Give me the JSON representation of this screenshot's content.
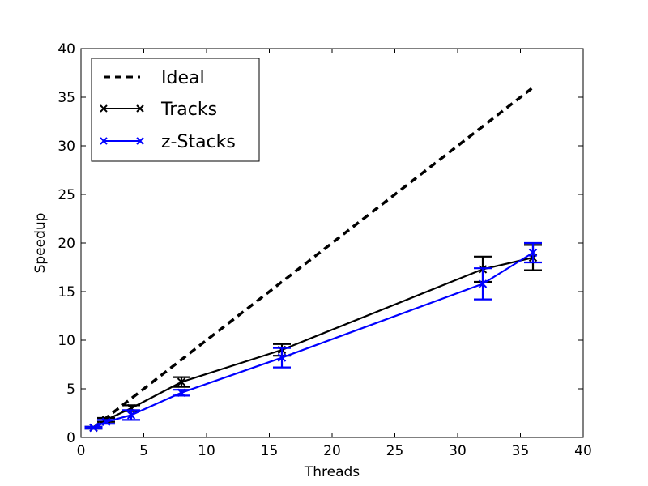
{
  "chart_data": {
    "type": "line",
    "xlabel": "Threads",
    "ylabel": "Speedup",
    "xlim": [
      0,
      40
    ],
    "ylim": [
      0,
      40
    ],
    "xticks": [
      "0",
      "5",
      "10",
      "15",
      "20",
      "25",
      "30",
      "35",
      "40"
    ],
    "yticks": [
      "0",
      "5",
      "10",
      "15",
      "20",
      "25",
      "30",
      "35",
      "40"
    ],
    "grid": false,
    "legend_position": "top-left",
    "series": [
      {
        "name": "Ideal",
        "color": "#000000",
        "style": "dashed",
        "marker": "none",
        "x": [
          1,
          36
        ],
        "y": [
          1,
          36
        ]
      },
      {
        "name": "Tracks",
        "color": "#000000",
        "style": "solid",
        "marker": "x",
        "x": [
          1,
          2,
          4,
          8,
          16,
          32,
          36
        ],
        "y": [
          1.0,
          1.8,
          3.0,
          5.7,
          9.0,
          17.3,
          18.5
        ],
        "err": [
          0.1,
          0.2,
          0.3,
          0.5,
          0.6,
          1.3,
          1.3
        ]
      },
      {
        "name": "z-Stacks",
        "color": "#0000ff",
        "style": "solid",
        "marker": "x",
        "x": [
          1,
          2,
          4,
          8,
          16,
          32,
          36
        ],
        "y": [
          1.0,
          1.6,
          2.3,
          4.6,
          8.2,
          15.8,
          19.0
        ],
        "err": [
          0.1,
          0.2,
          0.5,
          0.3,
          1.0,
          1.6,
          1.0
        ]
      }
    ]
  }
}
